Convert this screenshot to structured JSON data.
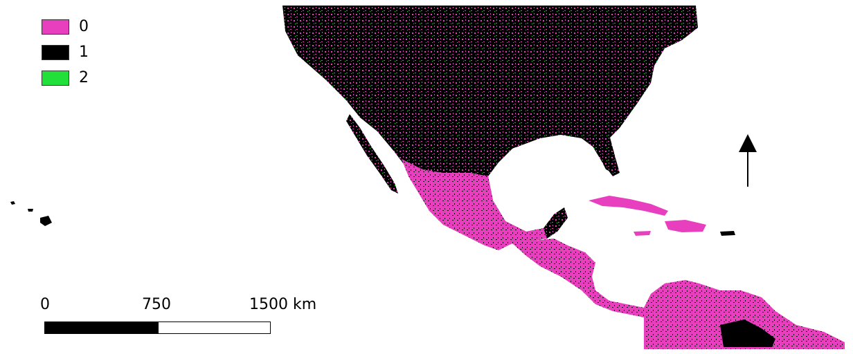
{
  "legend": {
    "items": [
      {
        "label": "0",
        "color": "#e83fbf"
      },
      {
        "label": "1",
        "color": "#000000"
      },
      {
        "label": "2",
        "color": "#22e03a"
      }
    ]
  },
  "scale_bar": {
    "labels": [
      "0",
      "750",
      "1500 km"
    ],
    "colors": [
      "#000000",
      "#ffffff"
    ]
  },
  "north_arrow": {
    "icon": "north-arrow-icon"
  },
  "map": {
    "background": "#ffffff",
    "class_colors": {
      "0": "#e83fbf",
      "1": "#000000",
      "2": "#22e03a"
    }
  }
}
